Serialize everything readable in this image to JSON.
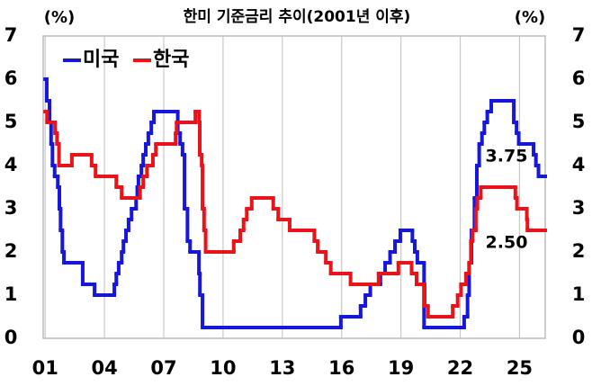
{
  "chart_data": {
    "type": "step-line",
    "title": "한미 기준금리 추이(2001년 이후)",
    "ylabel": "(%)",
    "y2label": "(%)",
    "xlim": [
      2000.9,
      2026.3
    ],
    "xticks": [
      {
        "value": 2001,
        "label": "01"
      },
      {
        "value": 2004,
        "label": "04"
      },
      {
        "value": 2007,
        "label": "07"
      },
      {
        "value": 2010,
        "label": "10"
      },
      {
        "value": 2013,
        "label": "13"
      },
      {
        "value": 2016,
        "label": "16"
      },
      {
        "value": 2019,
        "label": "19"
      },
      {
        "value": 2022,
        "label": "22"
      },
      {
        "value": 2025,
        "label": "25"
      }
    ],
    "ylim": [
      0,
      7
    ],
    "yticks": [
      0,
      1,
      2,
      3,
      4,
      5,
      6,
      7
    ],
    "y2lim": [
      0,
      7
    ],
    "y2ticks": [
      0,
      1,
      2,
      3,
      4,
      5,
      6,
      7
    ],
    "grid": "x",
    "legend": "top-left",
    "series": [
      {
        "name": "미국",
        "color": "#1717dc",
        "end_label": "3.75",
        "x": [
          2001.0,
          2001.08,
          2001.22,
          2001.3,
          2001.37,
          2001.48,
          2001.64,
          2001.72,
          2001.78,
          2001.87,
          2001.95,
          2002.9,
          2003.5,
          2004.5,
          2004.6,
          2004.72,
          2004.87,
          2004.96,
          2005.09,
          2005.22,
          2005.37,
          2005.6,
          2005.66,
          2005.72,
          2005.87,
          2005.96,
          2006.09,
          2006.22,
          2006.37,
          2006.5,
          2007.71,
          2007.83,
          2007.95,
          2008.05,
          2008.2,
          2008.33,
          2008.78,
          2008.83,
          2008.96,
          2015.96,
          2016.96,
          2017.2,
          2017.45,
          2017.96,
          2018.2,
          2018.45,
          2018.7,
          2018.97,
          2019.58,
          2019.7,
          2019.83,
          2020.17,
          2022.2,
          2022.37,
          2022.45,
          2022.57,
          2022.72,
          2022.84,
          2022.96,
          2023.1,
          2023.22,
          2023.37,
          2023.57,
          2024.71,
          2024.85,
          2024.96,
          2025.71,
          2025.83,
          2025.96
        ],
        "values": [
          6.0,
          5.5,
          5.0,
          4.5,
          4.0,
          3.75,
          3.5,
          3.0,
          2.5,
          2.0,
          1.75,
          1.25,
          1.0,
          1.25,
          1.5,
          1.75,
          2.0,
          2.25,
          2.5,
          2.75,
          3.0,
          3.25,
          3.5,
          3.75,
          4.0,
          4.25,
          4.5,
          4.75,
          5.0,
          5.25,
          4.75,
          4.5,
          4.25,
          3.0,
          2.25,
          2.0,
          1.5,
          1.0,
          0.25,
          0.5,
          0.75,
          1.0,
          1.25,
          1.5,
          1.75,
          2.0,
          2.25,
          2.5,
          2.25,
          2.0,
          1.75,
          0.25,
          0.5,
          1.0,
          1.75,
          2.5,
          3.25,
          4.0,
          4.5,
          4.75,
          5.0,
          5.25,
          5.5,
          5.0,
          4.75,
          4.5,
          4.25,
          4.0,
          3.75
        ]
      },
      {
        "name": "한국",
        "color": "#e8141a",
        "end_label": "2.50",
        "x": [
          2001.0,
          2001.1,
          2001.5,
          2001.6,
          2001.7,
          2002.35,
          2003.35,
          2003.55,
          2004.6,
          2004.87,
          2005.8,
          2005.96,
          2006.15,
          2006.45,
          2006.6,
          2007.6,
          2007.65,
          2008.6,
          2008.79,
          2008.82,
          2008.92,
          2008.96,
          2009.04,
          2009.12,
          2010.54,
          2010.87,
          2011.04,
          2011.2,
          2011.45,
          2012.54,
          2012.79,
          2013.37,
          2014.62,
          2014.79,
          2015.2,
          2015.45,
          2016.45,
          2017.87,
          2018.87,
          2019.54,
          2019.79,
          2020.2,
          2020.37,
          2021.62,
          2021.87,
          2022.04,
          2022.29,
          2022.45,
          2022.54,
          2022.62,
          2022.79,
          2022.87,
          2023.04,
          2024.79,
          2024.87,
          2025.37,
          2025.4
        ],
        "values": [
          5.25,
          5.0,
          4.75,
          4.5,
          4.0,
          4.25,
          4.0,
          3.75,
          3.5,
          3.25,
          3.5,
          3.75,
          4.0,
          4.25,
          4.5,
          4.75,
          5.0,
          5.25,
          5.0,
          4.25,
          4.0,
          3.0,
          2.5,
          2.0,
          2.25,
          2.5,
          2.75,
          3.0,
          3.25,
          3.0,
          2.75,
          2.5,
          2.25,
          2.0,
          1.75,
          1.5,
          1.25,
          1.5,
          1.75,
          1.5,
          1.25,
          0.75,
          0.5,
          0.75,
          1.0,
          1.25,
          1.5,
          1.75,
          2.25,
          2.5,
          3.0,
          3.25,
          3.5,
          3.25,
          3.0,
          2.75,
          2.5
        ]
      }
    ]
  }
}
